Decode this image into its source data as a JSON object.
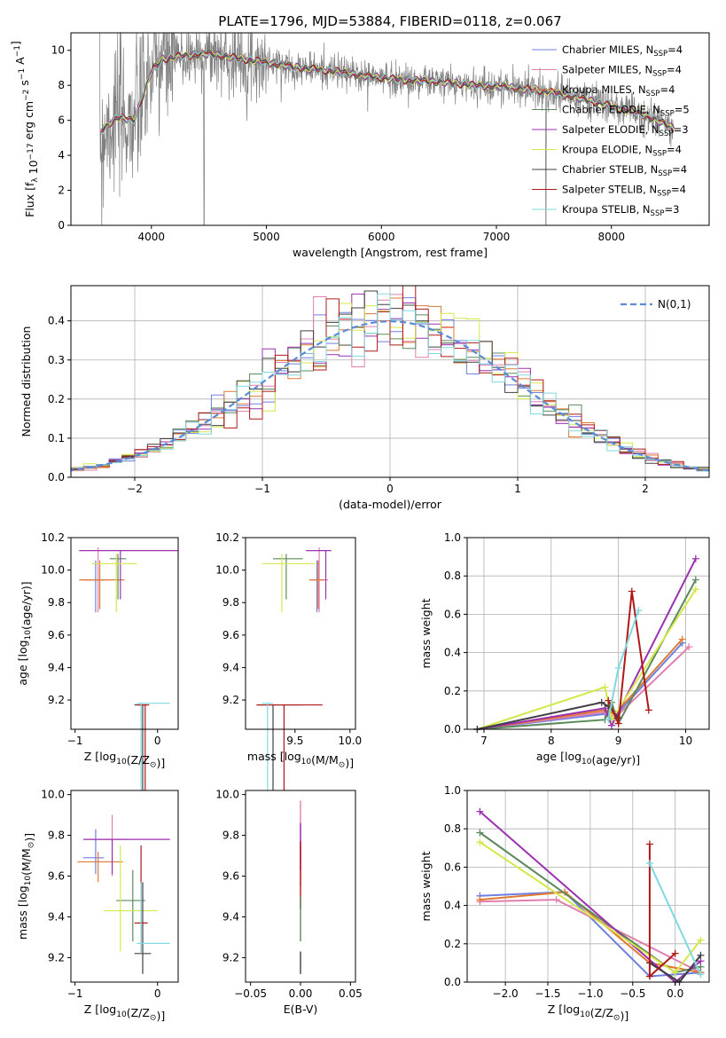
{
  "figure": {
    "title": "PLATE=1796, MJD=53884, FIBERID=0118, z=0.067"
  },
  "models": [
    {
      "label": "Chabrier MILES, N_SSP=4",
      "imf": "Chabrier",
      "lib": "MILES",
      "nssp": "4",
      "color": "#6f7fe0"
    },
    {
      "label": "Salpeter MILES, N_SSP=4",
      "imf": "Salpeter",
      "lib": "MILES",
      "nssp": "4",
      "color": "#e07fb0"
    },
    {
      "label": "Kroupa MILES, N_SSP=4",
      "imf": "Kroupa",
      "lib": "MILES",
      "nssp": "4",
      "color": "#e07a30"
    },
    {
      "label": "Chabrier ELODIE, N_SSP=5",
      "imf": "Chabrier",
      "lib": "ELODIE",
      "nssp": "5",
      "color": "#5c8a5c"
    },
    {
      "label": "Salpeter ELODIE, N_SSP=3",
      "imf": "Salpeter",
      "lib": "ELODIE",
      "nssp": "3",
      "color": "#9b30b0"
    },
    {
      "label": "Kroupa ELODIE, N_SSP=4",
      "imf": "Kroupa",
      "lib": "ELODIE",
      "nssp": "4",
      "color": "#d4e84a"
    },
    {
      "label": "Chabrier STELIB, N_SSP=4",
      "imf": "Chabrier",
      "lib": "STELIB",
      "nssp": "4",
      "color": "#404040"
    },
    {
      "label": "Salpeter STELIB, N_SSP=4",
      "imf": "Salpeter",
      "lib": "STELIB",
      "nssp": "4",
      "color": "#b01818"
    },
    {
      "label": "Kroupa STELIB, N_SSP=3",
      "imf": "Kroupa",
      "lib": "STELIB",
      "nssp": "3",
      "color": "#80d8e0"
    }
  ],
  "chart_data": [
    {
      "id": "spectrum",
      "type": "line",
      "xlabel": "wavelength [Angstrom, rest frame]",
      "ylabel": "Flux [f_λ 10^-17 erg cm^-2 s^-1 A^-1]",
      "xlim": [
        3300,
        8850
      ],
      "ylim": [
        0,
        11
      ],
      "xticks": [
        4000,
        5000,
        6000,
        7000,
        8000
      ],
      "yticks": [
        0,
        2,
        4,
        6,
        8,
        10
      ],
      "grid": false,
      "legend": "right",
      "data_color": "#808080",
      "data_anchors": {
        "x": [
          3550,
          3700,
          3850,
          4000,
          4100,
          4300,
          4500,
          4700,
          5000,
          5300,
          5600,
          5900,
          6200,
          6500,
          6800,
          7100,
          7400,
          7700,
          8000,
          8300,
          8550
        ],
        "y": [
          5.3,
          6.2,
          6.0,
          8.8,
          9.5,
          9.7,
          9.8,
          9.6,
          9.3,
          9.0,
          8.8,
          8.5,
          8.3,
          8.2,
          8.0,
          7.9,
          7.7,
          7.3,
          6.8,
          6.3,
          5.5
        ]
      },
      "notes": "Models overlay the observed spectrum closely"
    },
    {
      "id": "residuals",
      "type": "line",
      "xlabel": "(data-model)/error",
      "ylabel": "Normed distribution",
      "xlim": [
        -2.5,
        2.5
      ],
      "ylim": [
        0,
        0.49
      ],
      "xticks": [
        -2,
        -1,
        0,
        1,
        2
      ],
      "yticks": [
        0.0,
        0.1,
        0.2,
        0.3,
        0.4
      ],
      "grid": true,
      "legend": "top-right",
      "normal_label": "N(0,1)",
      "normal_color": "#5b8ad8",
      "bin_width": 0.1
    },
    {
      "id": "age_vs_Z",
      "type": "scatter",
      "xlabel": "Z [log10(Z/Z⊙)]",
      "ylabel": "age [log10(age/yr)]",
      "xlim": [
        -1.05,
        0.25
      ],
      "ylim": [
        9.02,
        10.2
      ],
      "xticks": [
        -1,
        0
      ],
      "yticks": [
        9.2,
        9.4,
        9.6,
        9.8,
        10.0,
        10.2
      ],
      "grid": false,
      "errorbars": [
        {
          "model": 0,
          "x": -0.75,
          "y": 9.94,
          "xerr": [
            0.15,
            0.1
          ],
          "yerr": [
            0.2,
            0.12
          ]
        },
        {
          "model": 1,
          "x": -0.72,
          "y": 9.94,
          "xerr": [
            0.2,
            0.15
          ],
          "yerr": [
            0.2,
            0.2
          ]
        },
        {
          "model": 2,
          "x": -0.7,
          "y": 9.94,
          "xerr": [
            0.25,
            0.3
          ],
          "yerr": [
            0.18,
            0.12
          ]
        },
        {
          "model": 3,
          "x": -0.48,
          "y": 10.07,
          "xerr": [
            0.1,
            0.1
          ],
          "yerr": [
            0.25,
            0.03
          ]
        },
        {
          "model": 4,
          "x": -0.45,
          "y": 10.12,
          "xerr": [
            0.5,
            0.7
          ],
          "yerr": [
            0.3,
            0.0
          ]
        },
        {
          "model": 5,
          "x": -0.5,
          "y": 10.04,
          "xerr": [
            0.3,
            0.25
          ],
          "yerr": [
            0.3,
            0.06
          ]
        },
        {
          "model": 6,
          "x": -0.18,
          "y": 9.17,
          "xerr": [
            0.1,
            0.05
          ],
          "yerr": [
            0.78,
            0.0
          ]
        },
        {
          "model": 7,
          "x": -0.15,
          "y": 9.17,
          "xerr": [
            0.1,
            0.05
          ],
          "yerr": [
            0.75,
            0.0
          ]
        },
        {
          "model": 8,
          "x": -0.2,
          "y": 9.18,
          "xerr": [
            0.05,
            0.35
          ],
          "yerr": [
            0.76,
            0.0
          ]
        }
      ]
    },
    {
      "id": "age_vs_mass",
      "type": "scatter",
      "xlabel": "mass [log10(M/M⊙)]",
      "ylabel": "",
      "xlim": [
        9.05,
        10.05
      ],
      "ylim": [
        9.02,
        10.2
      ],
      "xticks": [
        9.5,
        10.0
      ],
      "yticks": [
        9.2,
        9.4,
        9.6,
        9.8,
        10.0,
        10.2
      ],
      "grid": false,
      "errorbars": [
        {
          "model": 0,
          "x": 9.7,
          "y": 9.94,
          "xerr": [
            0.07,
            0.07
          ],
          "yerr": [
            0.2,
            0.12
          ]
        },
        {
          "model": 1,
          "x": 9.72,
          "y": 9.94,
          "xerr": [
            0.05,
            0.08
          ],
          "yerr": [
            0.2,
            0.2
          ]
        },
        {
          "model": 2,
          "x": 9.71,
          "y": 9.94,
          "xerr": [
            0.08,
            0.05
          ],
          "yerr": [
            0.18,
            0.12
          ]
        },
        {
          "model": 3,
          "x": 9.42,
          "y": 10.07,
          "xerr": [
            0.12,
            0.15
          ],
          "yerr": [
            0.25,
            0.03
          ]
        },
        {
          "model": 4,
          "x": 9.78,
          "y": 10.12,
          "xerr": [
            0.18,
            0.05
          ],
          "yerr": [
            0.3,
            0.0
          ]
        },
        {
          "model": 5,
          "x": 9.38,
          "y": 10.04,
          "xerr": [
            0.18,
            0.3
          ],
          "yerr": [
            0.3,
            0.06
          ]
        },
        {
          "model": 6,
          "x": 9.3,
          "y": 9.17,
          "xerr": [
            0.15,
            0.25
          ],
          "yerr": [
            0.78,
            0.0
          ]
        },
        {
          "model": 7,
          "x": 9.4,
          "y": 9.17,
          "xerr": [
            0.25,
            0.35
          ],
          "yerr": [
            0.75,
            0.0
          ]
        },
        {
          "model": 8,
          "x": 9.25,
          "y": 9.18,
          "xerr": [
            0.05,
            0.05
          ],
          "yerr": [
            0.76,
            0.0
          ]
        }
      ]
    },
    {
      "id": "weight_vs_age",
      "type": "line",
      "xlabel": "age [log10(age/yr)]",
      "ylabel": "mass weight",
      "xlim": [
        6.75,
        10.35
      ],
      "ylim": [
        0,
        1
      ],
      "xticks": [
        7,
        8,
        9,
        10
      ],
      "yticks": [
        0.0,
        0.2,
        0.4,
        0.6,
        0.8,
        1.0
      ],
      "grid": true,
      "series": [
        {
          "model": 0,
          "x": [
            6.9,
            8.8,
            8.9,
            9.95
          ],
          "y": [
            0.0,
            0.08,
            0.05,
            0.45
          ]
        },
        {
          "model": 1,
          "x": [
            6.9,
            8.8,
            8.95,
            10.05
          ],
          "y": [
            0.0,
            0.09,
            0.06,
            0.43
          ]
        },
        {
          "model": 2,
          "x": [
            6.9,
            8.8,
            8.95,
            9.95
          ],
          "y": [
            0.0,
            0.1,
            0.08,
            0.47
          ]
        },
        {
          "model": 3,
          "x": [
            6.9,
            8.8,
            8.9,
            9.0,
            10.15
          ],
          "y": [
            0.0,
            0.05,
            0.14,
            0.03,
            0.78
          ]
        },
        {
          "model": 4,
          "x": [
            6.9,
            8.8,
            8.9,
            10.15
          ],
          "y": [
            0.0,
            0.11,
            0.02,
            0.89
          ]
        },
        {
          "model": 5,
          "x": [
            6.9,
            8.8,
            8.9,
            10.15
          ],
          "y": [
            0.0,
            0.22,
            0.05,
            0.73
          ]
        },
        {
          "model": 6,
          "x": [
            6.9,
            8.75,
            8.85,
            9.0
          ],
          "y": [
            0.0,
            0.14,
            0.12,
            0.06
          ]
        },
        {
          "model": 7,
          "x": [
            8.85,
            9.0,
            9.2,
            9.45
          ],
          "y": [
            0.15,
            0.03,
            0.72,
            0.1
          ]
        },
        {
          "model": 8,
          "x": [
            8.85,
            9.0,
            9.3
          ],
          "y": [
            0.05,
            0.32,
            0.62
          ]
        }
      ]
    },
    {
      "id": "mass_vs_Z",
      "type": "scatter",
      "xlabel": "Z [log10(Z/Z⊙)]",
      "ylabel": "mass [log10(M/M⊙)]",
      "xlim": [
        -1.05,
        0.25
      ],
      "ylim": [
        9.08,
        10.02
      ],
      "xticks": [
        -1,
        0
      ],
      "yticks": [
        9.2,
        9.4,
        9.6,
        9.8,
        10.0
      ],
      "grid": false,
      "errorbars": [
        {
          "model": 0,
          "x": -0.75,
          "y": 9.69,
          "xerr": [
            0.15,
            0.1
          ],
          "yerr": [
            0.08,
            0.14
          ]
        },
        {
          "model": 1,
          "x": -0.55,
          "y": 9.78,
          "xerr": [
            0.3,
            0.2
          ],
          "yerr": [
            0.18,
            0.12
          ]
        },
        {
          "model": 2,
          "x": -0.72,
          "y": 9.67,
          "xerr": [
            0.25,
            0.3
          ],
          "yerr": [
            0.1,
            0.05
          ]
        },
        {
          "model": 3,
          "x": -0.3,
          "y": 9.48,
          "xerr": [
            0.2,
            0.15
          ],
          "yerr": [
            0.2,
            0.15
          ]
        },
        {
          "model": 4,
          "x": -0.55,
          "y": 9.78,
          "xerr": [
            0.35,
            0.7
          ],
          "yerr": [
            0.17,
            0.0
          ]
        },
        {
          "model": 5,
          "x": -0.45,
          "y": 9.43,
          "xerr": [
            0.2,
            0.45
          ],
          "yerr": [
            0.2,
            0.32
          ]
        },
        {
          "model": 6,
          "x": -0.18,
          "y": 9.22,
          "xerr": [
            0.1,
            0.1
          ],
          "yerr": [
            0.1,
            0.35
          ]
        },
        {
          "model": 7,
          "x": -0.2,
          "y": 9.37,
          "xerr": [
            0.08,
            0.08
          ],
          "yerr": [
            0.15,
            0.38
          ]
        },
        {
          "model": 8,
          "x": -0.2,
          "y": 9.27,
          "xerr": [
            0.05,
            0.35
          ],
          "yerr": [
            0.05,
            0.3
          ]
        }
      ]
    },
    {
      "id": "mass_vs_EBV",
      "type": "scatter",
      "xlabel": "E(B-V)",
      "ylabel": "",
      "xlim": [
        -0.055,
        0.055
      ],
      "ylim": [
        9.08,
        10.02
      ],
      "xticks": [
        -0.05,
        0.0,
        0.05
      ],
      "xticklabels": [
        "−0.05",
        "0.00",
        "0.05"
      ],
      "yticks": [
        9.2,
        9.4,
        9.6,
        9.8,
        10.0
      ],
      "grid": false,
      "segments": [
        {
          "model": 1,
          "y0": 9.55,
          "y1": 9.97
        },
        {
          "model": 4,
          "y0": 9.63,
          "y1": 9.86
        },
        {
          "model": 7,
          "y0": 9.44,
          "y1": 9.77
        },
        {
          "model": 3,
          "y0": 9.28,
          "y1": 9.5
        },
        {
          "model": 6,
          "y0": 9.12,
          "y1": 9.23
        }
      ]
    },
    {
      "id": "weight_vs_Z",
      "type": "line",
      "xlabel": "Z [log10(Z/Z⊙)]",
      "ylabel": "mass weight",
      "xlim": [
        -2.45,
        0.4
      ],
      "ylim": [
        0,
        1
      ],
      "xticks": [
        -2.0,
        -1.5,
        -1.0,
        -0.5,
        0.0
      ],
      "yticks": [
        0.0,
        0.2,
        0.4,
        0.6,
        0.8,
        1.0
      ],
      "grid": true,
      "series": [
        {
          "model": 0,
          "x": [
            -2.3,
            -1.3,
            -0.3,
            0.3
          ],
          "y": [
            0.45,
            0.47,
            0.03,
            0.05
          ]
        },
        {
          "model": 1,
          "x": [
            -2.3,
            -1.4,
            0.3
          ],
          "y": [
            0.42,
            0.43,
            0.05
          ]
        },
        {
          "model": 2,
          "x": [
            -2.3,
            -1.3,
            -0.3,
            0.3
          ],
          "y": [
            0.43,
            0.47,
            0.1,
            0.05
          ]
        },
        {
          "model": 3,
          "x": [
            -2.3,
            0.0,
            0.3
          ],
          "y": [
            0.78,
            0.05,
            0.08
          ]
        },
        {
          "model": 4,
          "x": [
            -2.3,
            0.0,
            0.3
          ],
          "y": [
            0.89,
            0.0,
            0.11
          ]
        },
        {
          "model": 5,
          "x": [
            -2.3,
            0.0,
            0.3
          ],
          "y": [
            0.73,
            0.05,
            0.22
          ]
        },
        {
          "model": 6,
          "x": [
            -0.3,
            0.05,
            0.3
          ],
          "y": [
            0.1,
            0.0,
            0.14
          ]
        },
        {
          "model": 7,
          "x": [
            -0.3,
            -0.3,
            0.0
          ],
          "y": [
            0.72,
            0.03,
            0.15
          ]
        },
        {
          "model": 8,
          "x": [
            -0.3,
            0.3
          ],
          "y": [
            0.62,
            0.04
          ]
        }
      ]
    }
  ]
}
